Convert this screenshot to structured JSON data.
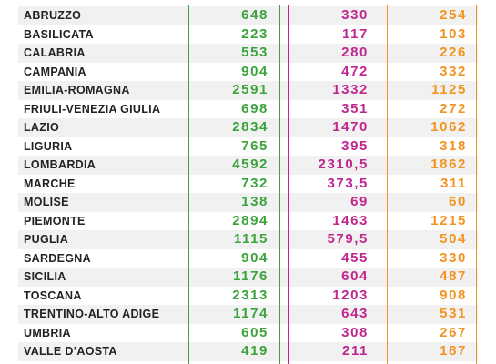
{
  "table": {
    "rows": [
      [
        "ABRUZZO",
        "648",
        "330",
        "254"
      ],
      [
        "BASILICATA",
        "223",
        "117",
        "103"
      ],
      [
        "CALABRIA",
        "553",
        "280",
        "226"
      ],
      [
        "CAMPANIA",
        "904",
        "472",
        "332"
      ],
      [
        "EMILIA-ROMAGNA",
        "2591",
        "1332",
        "1125"
      ],
      [
        "FRIULI-VENEZIA GIULIA",
        "698",
        "351",
        "272"
      ],
      [
        "LAZIO",
        "2834",
        "1470",
        "1062"
      ],
      [
        "LIGURIA",
        "765",
        "395",
        "318"
      ],
      [
        "LOMBARDIA",
        "4592",
        "2310,5",
        "1862"
      ],
      [
        "MARCHE",
        "732",
        "373,5",
        "311"
      ],
      [
        "MOLISE",
        "138",
        "69",
        "60"
      ],
      [
        "PIEMONTE",
        "2894",
        "1463",
        "1215"
      ],
      [
        "PUGLIA",
        "1115",
        "579,5",
        "504"
      ],
      [
        "SARDEGNA",
        "904",
        "455",
        "330"
      ],
      [
        "SICILIA",
        "1176",
        "604",
        "487"
      ],
      [
        "TOSCANA",
        "2313",
        "1203",
        "908"
      ],
      [
        "TRENTINO-ALTO ADIGE",
        "1174",
        "643",
        "531"
      ],
      [
        "UMBRIA",
        "605",
        "308",
        "267"
      ],
      [
        "VALLE D’AOSTA",
        "419",
        "211",
        "187"
      ]
    ]
  }
}
